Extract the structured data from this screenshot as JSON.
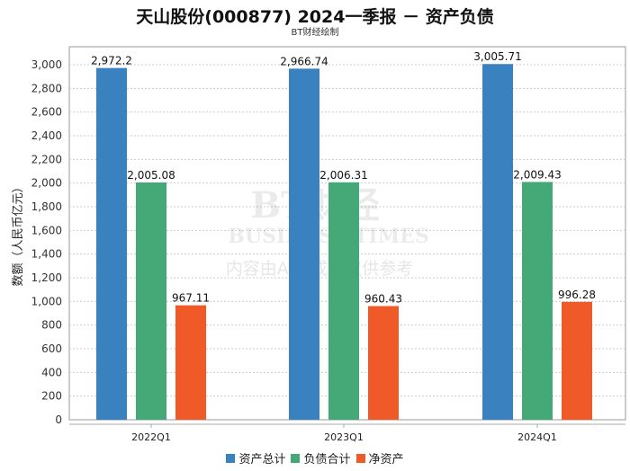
{
  "chart_data": {
    "type": "bar",
    "title": "天山股份(000877) 2024一季报 － 资产负债",
    "subtitle": "BT财经绘制",
    "ylabel": "数额（人民币亿元）",
    "xlabel": "",
    "categories": [
      "2022Q1",
      "2023Q1",
      "2024Q1"
    ],
    "series": [
      {
        "name": "资产总计",
        "color": "#3a81bf",
        "values": [
          2972.2,
          2966.74,
          3005.71
        ],
        "labels": [
          "2,972.2",
          "2,966.74",
          "3,005.71"
        ]
      },
      {
        "name": "负债合计",
        "color": "#44a877",
        "values": [
          2005.08,
          2006.31,
          2009.43
        ],
        "labels": [
          "2,005.08",
          "2,006.31",
          "2,009.43"
        ]
      },
      {
        "name": "净资产",
        "color": "#f05a28",
        "values": [
          967.11,
          960.43,
          996.28
        ],
        "labels": [
          "967.11",
          "960.43",
          "996.28"
        ]
      }
    ],
    "ylim": [
      0,
      3200
    ],
    "yticks": [
      0,
      200,
      400,
      600,
      800,
      1000,
      1200,
      1400,
      1600,
      1800,
      2000,
      2200,
      2400,
      2600,
      2800,
      3000
    ],
    "ytick_labels": [
      "0",
      "200",
      "400",
      "600",
      "800",
      "1,000",
      "1,200",
      "1,400",
      "1,600",
      "1,800",
      "2,000",
      "2,200",
      "2,400",
      "2,600",
      "2,800",
      "3,000"
    ],
    "grid": true,
    "legend": "bottom"
  },
  "watermark": {
    "line1": "BT财经",
    "line2": "BUSINESS TIMES",
    "line3": "内容由AI生成，仅供参考"
  }
}
